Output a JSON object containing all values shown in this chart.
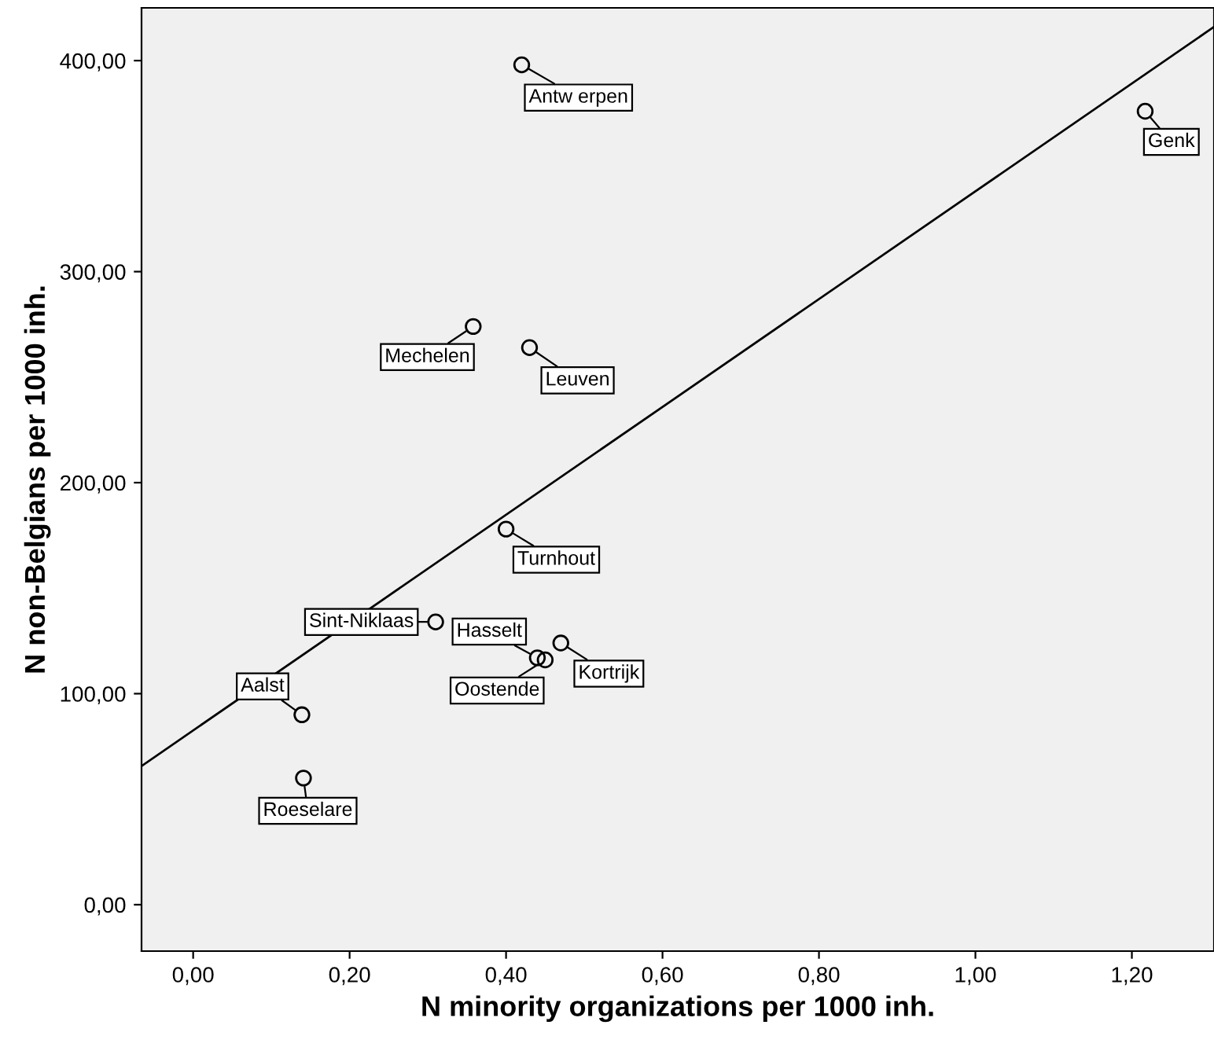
{
  "chart_data": {
    "type": "scatter",
    "xlabel": "N minority organizations per 1000 inh.",
    "ylabel": "N non-Belgians per 1000 inh.",
    "xlim": [
      -0.066,
      1.305
    ],
    "ylim": [
      -22,
      425
    ],
    "xticks": [
      {
        "value": 0,
        "label": "0,00"
      },
      {
        "value": 0.2,
        "label": "0,20"
      },
      {
        "value": 0.4,
        "label": "0,40"
      },
      {
        "value": 0.6,
        "label": "0,60"
      },
      {
        "value": 0.8,
        "label": "0,80"
      },
      {
        "value": 1.0,
        "label": "1,00"
      },
      {
        "value": 1.2,
        "label": "1,20"
      }
    ],
    "yticks": [
      {
        "value": 0,
        "label": "0,00"
      },
      {
        "value": 100,
        "label": "100,00"
      },
      {
        "value": 200,
        "label": "200,00"
      },
      {
        "value": 300,
        "label": "300,00"
      },
      {
        "value": 400,
        "label": "400,00"
      }
    ],
    "grid": false,
    "marker": "circle",
    "series": [
      {
        "color": "#000000",
        "x": [
          0.42,
          1.217,
          0.358,
          0.43,
          0.4,
          0.31,
          0.44,
          0.47,
          0.45,
          0.139,
          0.141
        ],
        "values": [
          398,
          376,
          274,
          264,
          178,
          134,
          117,
          124,
          116,
          90,
          60
        ]
      },
      {
        "type": "line",
        "marker": "none",
        "color": "#000000",
        "x": [
          -0.066,
          1.305
        ],
        "values": [
          65.7,
          416
        ]
      }
    ],
    "annotations": [
      {
        "text": "Antw erpen",
        "x": 0.42,
        "y": 398
      },
      {
        "text": "Genk",
        "x": 1.217,
        "y": 376
      },
      {
        "text": "Mechelen",
        "x": 0.358,
        "y": 274
      },
      {
        "text": "Leuven",
        "x": 0.43,
        "y": 264
      },
      {
        "text": "Turnhout",
        "x": 0.4,
        "y": 178
      },
      {
        "text": "Sint-Niklaas",
        "x": 0.31,
        "y": 134
      },
      {
        "text": "Hasselt",
        "x": 0.44,
        "y": 117
      },
      {
        "text": "Kortrijk",
        "x": 0.47,
        "y": 124
      },
      {
        "text": "Oostende",
        "x": 0.45,
        "y": 116
      },
      {
        "text": "Aalst",
        "x": 0.139,
        "y": 90
      },
      {
        "text": "Roeselare",
        "x": 0.141,
        "y": 60
      }
    ]
  }
}
